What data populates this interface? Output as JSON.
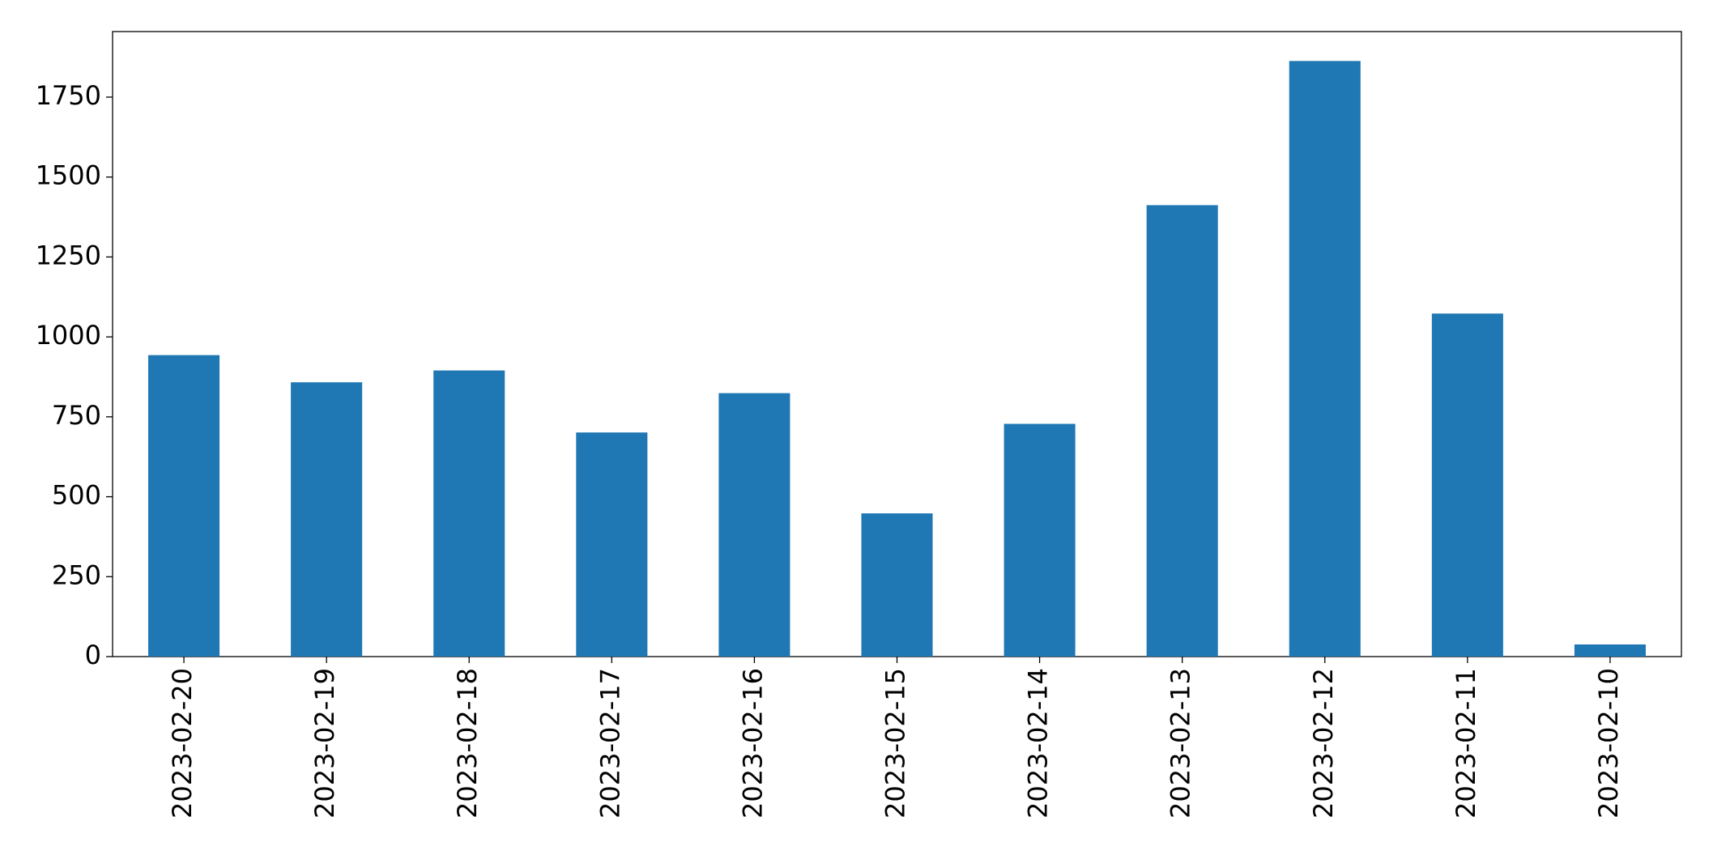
{
  "chart_data": {
    "type": "bar",
    "categories": [
      "2023-02-20",
      "2023-02-19",
      "2023-02-18",
      "2023-02-17",
      "2023-02-16",
      "2023-02-15",
      "2023-02-14",
      "2023-02-13",
      "2023-02-12",
      "2023-02-11",
      "2023-02-10"
    ],
    "values": [
      943,
      858,
      895,
      701,
      824,
      448,
      728,
      1412,
      1863,
      1073,
      38
    ],
    "color": "#1f77b4",
    "ylim": [
      0,
      1955
    ],
    "yticks": [
      0,
      250,
      500,
      750,
      1000,
      1250,
      1500,
      1750
    ],
    "grid": false
  }
}
